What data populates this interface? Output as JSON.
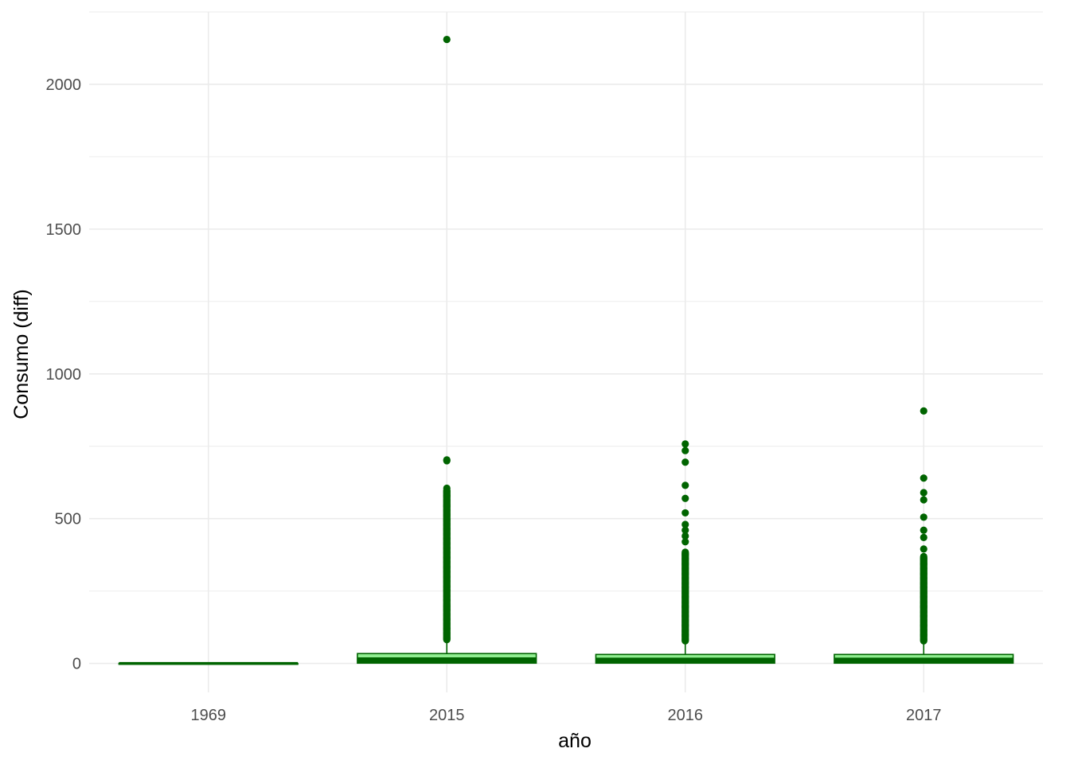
{
  "chart_data": {
    "type": "boxplot",
    "title": "",
    "xlabel": "año",
    "ylabel": "Consumo (diff)",
    "ylim": [
      -100,
      2250
    ],
    "y_ticks": [
      0,
      500,
      1000,
      1500,
      2000
    ],
    "grid": true,
    "legend": "none",
    "colors": {
      "line": "#006400",
      "fill": "#90ee90",
      "grid": "#ebebeb"
    },
    "categories": [
      "1969",
      "2015",
      "2016",
      "2017"
    ],
    "boxes": [
      {
        "category": "1969",
        "min": 0,
        "q1": 0,
        "median": 0,
        "q3": 0,
        "max": 0,
        "fill_visible": false,
        "outliers": []
      },
      {
        "category": "2015",
        "min": 0,
        "q1": 1,
        "median": 16,
        "q3": 34,
        "max": 80,
        "outlier_run": [
          82,
          600
        ],
        "outliers": [
          605,
          700,
          703,
          2155
        ]
      },
      {
        "category": "2016",
        "min": 0,
        "q1": 1,
        "median": 15,
        "q3": 31,
        "max": 75,
        "outlier_run": [
          78,
          385
        ],
        "outliers": [
          420,
          440,
          460,
          480,
          520,
          570,
          615,
          695,
          735,
          758
        ]
      },
      {
        "category": "2017",
        "min": 0,
        "q1": 1,
        "median": 15,
        "q3": 31,
        "max": 75,
        "outlier_run": [
          78,
          370
        ],
        "outliers": [
          395,
          435,
          460,
          505,
          565,
          590,
          640,
          872
        ]
      }
    ]
  }
}
